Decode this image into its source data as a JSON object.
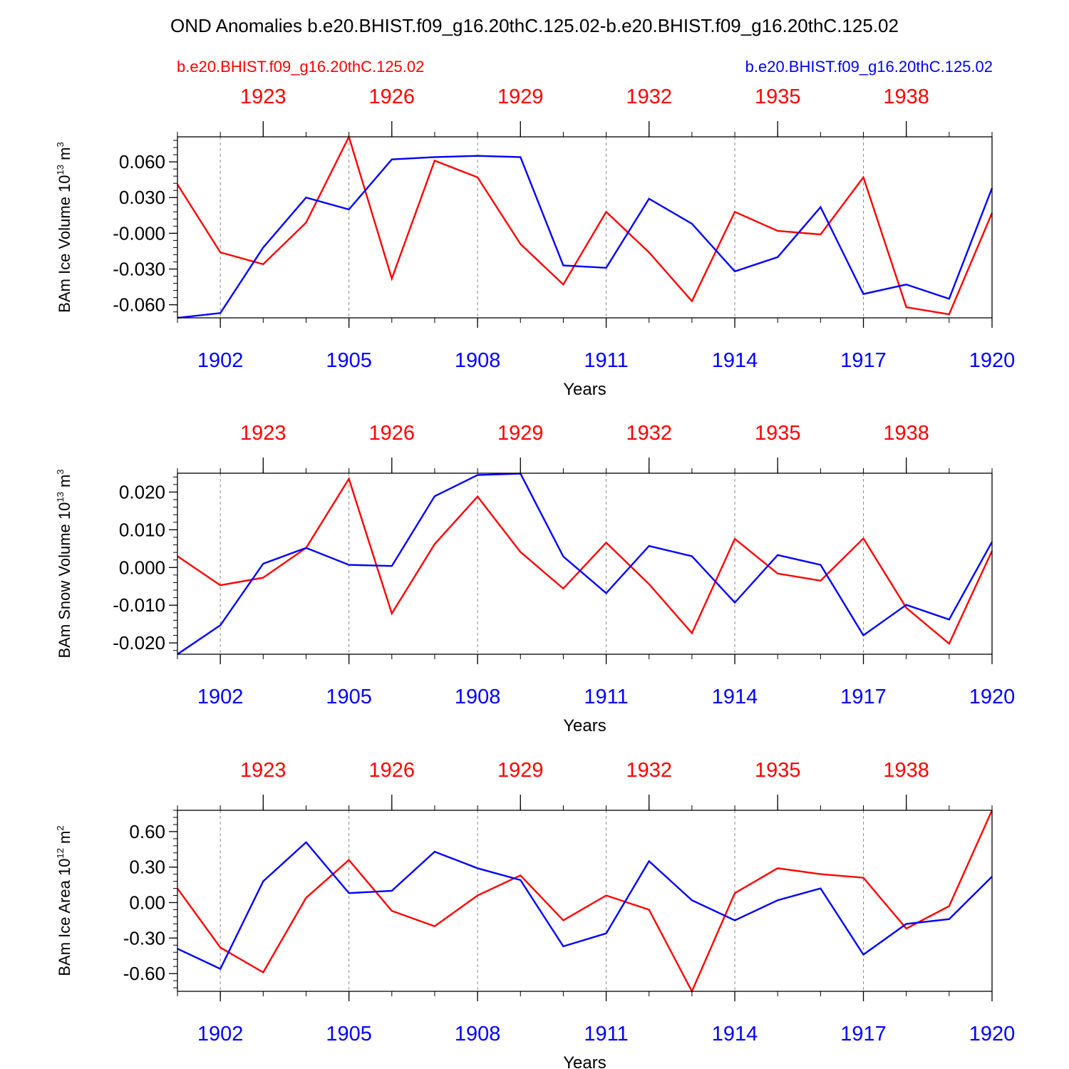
{
  "colors": {
    "series_a": "#ff0000",
    "series_b": "#0000ff",
    "axis": "#000000",
    "grid": "#888888"
  },
  "title": "OND Anomalies b.e20.BHIST.f09_g16.20thC.125.02-b.e20.BHIST.f09_g16.20thC.125.02",
  "legend": {
    "left": "b.e20.BHIST.f09_g16.20thC.125.02",
    "right": "b.e20.BHIST.f09_g16.20thC.125.02"
  },
  "chart_data": [
    {
      "type": "line",
      "ylabel": {
        "main": "BAm Ice Volume 10",
        "exp1": "13",
        "mid": " m",
        "exp2": "3"
      },
      "xlabel": "Years",
      "ylim": [
        -0.071,
        0.081
      ],
      "yticks": [
        0.06,
        0.03,
        0.0,
        -0.03,
        -0.06
      ],
      "ytick_labels": [
        "0.060",
        "0.030",
        "-0.000",
        "-0.030",
        "-0.060"
      ],
      "yminor_step": 0.006,
      "x": [
        1901,
        1902,
        1903,
        1904,
        1905,
        1906,
        1907,
        1908,
        1909,
        1910,
        1911,
        1912,
        1913,
        1914,
        1915,
        1916,
        1917,
        1918,
        1919,
        1920
      ],
      "xlim": [
        1901,
        1920
      ],
      "xticks_bottom": [
        1902,
        1905,
        1908,
        1911,
        1914,
        1917,
        1920
      ],
      "xtick_labels_bottom": [
        "1902",
        "1905",
        "1908",
        "1911",
        "1914",
        "1917",
        "1920"
      ],
      "xticks_top_pos": [
        1903,
        1906,
        1909,
        1912,
        1915,
        1918
      ],
      "xtick_labels_top": [
        "1923",
        "1926",
        "1929",
        "1932",
        "1935",
        "1938"
      ],
      "series": [
        {
          "name": "b.e20.BHIST.f09_g16.20thC.125.02 (red)",
          "color": "#ff0000",
          "values": [
            0.041,
            -0.016,
            -0.026,
            0.009,
            0.081,
            -0.038,
            0.061,
            0.047,
            -0.009,
            -0.043,
            0.018,
            -0.016,
            -0.057,
            0.018,
            0.002,
            -0.001,
            0.047,
            -0.062,
            -0.068,
            0.017
          ]
        },
        {
          "name": "b.e20.BHIST.f09_g16.20thC.125.02 (blue)",
          "color": "#0000ff",
          "values": [
            -0.071,
            -0.067,
            -0.012,
            0.03,
            0.02,
            0.062,
            0.064,
            0.065,
            0.064,
            -0.027,
            -0.029,
            0.029,
            0.008,
            -0.032,
            -0.02,
            0.022,
            -0.051,
            -0.043,
            -0.055,
            0.038
          ]
        }
      ]
    },
    {
      "type": "line",
      "ylabel": {
        "main": "BAm Snow Volume 10",
        "exp1": "13",
        "mid": " m",
        "exp2": "3"
      },
      "xlabel": "Years",
      "ylim": [
        -0.023,
        0.025
      ],
      "yticks": [
        0.02,
        0.01,
        0.0,
        -0.01,
        -0.02
      ],
      "ytick_labels": [
        "0.020",
        "0.010",
        "0.000",
        "-0.010",
        "-0.020"
      ],
      "yminor_step": 0.002,
      "x": [
        1901,
        1902,
        1903,
        1904,
        1905,
        1906,
        1907,
        1908,
        1909,
        1910,
        1911,
        1912,
        1913,
        1914,
        1915,
        1916,
        1917,
        1918,
        1919,
        1920
      ],
      "xlim": [
        1901,
        1920
      ],
      "xticks_bottom": [
        1902,
        1905,
        1908,
        1911,
        1914,
        1917,
        1920
      ],
      "xtick_labels_bottom": [
        "1902",
        "1905",
        "1908",
        "1911",
        "1914",
        "1917",
        "1920"
      ],
      "xticks_top_pos": [
        1903,
        1906,
        1909,
        1912,
        1915,
        1918
      ],
      "xtick_labels_top": [
        "1923",
        "1926",
        "1929",
        "1932",
        "1935",
        "1938"
      ],
      "series": [
        {
          "name": "b.e20.BHIST.f09_g16.20thC.125.02 (red)",
          "color": "#ff0000",
          "values": [
            0.003,
            -0.0047,
            -0.0027,
            0.0052,
            0.0235,
            -0.0122,
            0.0062,
            0.0188,
            0.0041,
            -0.0056,
            0.0066,
            -0.0044,
            -0.0174,
            0.0076,
            -0.0016,
            -0.0035,
            0.0077,
            -0.0107,
            -0.0202,
            0.0044
          ]
        },
        {
          "name": "b.e20.BHIST.f09_g16.20thC.125.02 (blue)",
          "color": "#0000ff",
          "values": [
            -0.023,
            -0.0153,
            0.001,
            0.0052,
            0.0007,
            0.0004,
            0.0189,
            0.0245,
            0.0249,
            0.0029,
            -0.0068,
            0.0057,
            0.003,
            -0.0093,
            0.0033,
            0.0007,
            -0.018,
            -0.0099,
            -0.0138,
            0.0068
          ]
        }
      ]
    },
    {
      "type": "line",
      "ylabel": {
        "main": "BAm Ice Area 10",
        "exp1": "12",
        "mid": " m",
        "exp2": "2"
      },
      "xlabel": "Years",
      "ylim": [
        -0.75,
        0.78
      ],
      "yticks": [
        0.6,
        0.3,
        0.0,
        -0.3,
        -0.6
      ],
      "ytick_labels": [
        "0.60",
        "0.30",
        "0.00",
        "-0.30",
        "-0.60"
      ],
      "yminor_step": 0.06,
      "x": [
        1901,
        1902,
        1903,
        1904,
        1905,
        1906,
        1907,
        1908,
        1909,
        1910,
        1911,
        1912,
        1913,
        1914,
        1915,
        1916,
        1917,
        1918,
        1919,
        1920
      ],
      "xlim": [
        1901,
        1920
      ],
      "xticks_bottom": [
        1902,
        1905,
        1908,
        1911,
        1914,
        1917,
        1920
      ],
      "xtick_labels_bottom": [
        "1902",
        "1905",
        "1908",
        "1911",
        "1914",
        "1917",
        "1920"
      ],
      "xticks_top_pos": [
        1903,
        1906,
        1909,
        1912,
        1915,
        1918
      ],
      "xtick_labels_top": [
        "1923",
        "1926",
        "1929",
        "1932",
        "1935",
        "1938"
      ],
      "series": [
        {
          "name": "b.e20.BHIST.f09_g16.20thC.125.02 (red)",
          "color": "#ff0000",
          "values": [
            0.12,
            -0.38,
            -0.59,
            0.04,
            0.36,
            -0.07,
            -0.2,
            0.06,
            0.23,
            -0.15,
            0.06,
            -0.06,
            -0.75,
            0.08,
            0.29,
            0.24,
            0.21,
            -0.22,
            -0.03,
            0.78
          ]
        },
        {
          "name": "b.e20.BHIST.f09_g16.20thC.125.02 (blue)",
          "color": "#0000ff",
          "values": [
            -0.39,
            -0.56,
            0.18,
            0.51,
            0.08,
            0.1,
            0.43,
            0.29,
            0.19,
            -0.37,
            -0.26,
            0.35,
            0.02,
            -0.15,
            0.02,
            0.12,
            -0.44,
            -0.18,
            -0.14,
            0.22
          ]
        }
      ]
    }
  ]
}
